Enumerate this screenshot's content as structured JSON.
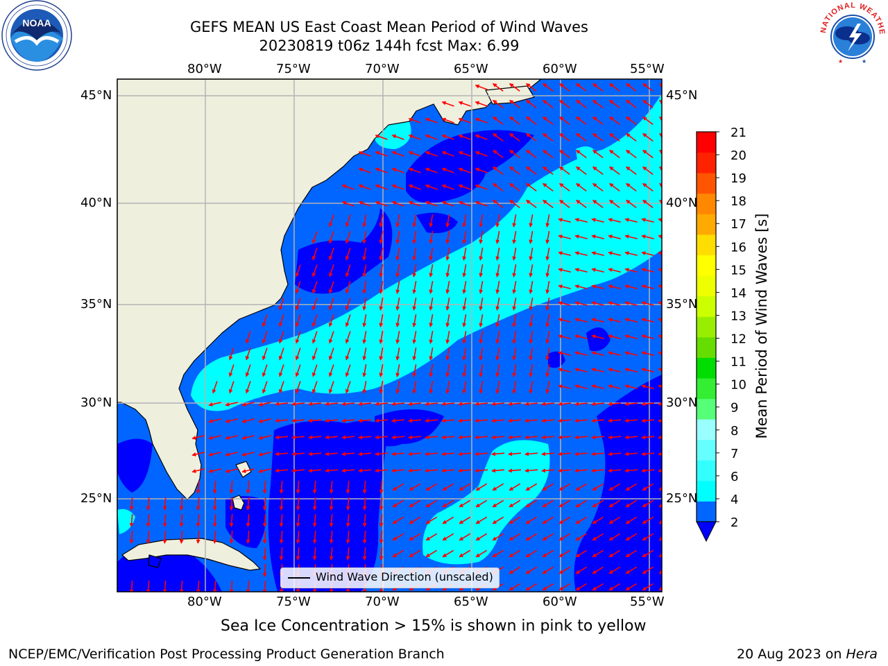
{
  "title": {
    "line1": "GEFS MEAN US East Coast Mean Period of Wind Waves",
    "line2": "20230819 t06z 144h fcst   Max: 6.99"
  },
  "map": {
    "lon_labels": [
      "80°W",
      "75°W",
      "70°W",
      "65°W",
      "60°W",
      "55°W"
    ],
    "lat_labels": [
      "45°N",
      "40°N",
      "35°N",
      "30°N",
      "25°N"
    ],
    "colors": {
      "land": "#efefde",
      "gridline": "#b4b4b4",
      "arrow": "#ff0000"
    },
    "legend": {
      "label": "Wind Wave Direction (unscaled)"
    }
  },
  "colorbar": {
    "label": "Mean Period of Wind Waves [s]",
    "ticks": [
      "2",
      "4",
      "6",
      "7",
      "8",
      "9",
      "10",
      "11",
      "12",
      "13",
      "14",
      "15",
      "16",
      "17",
      "18",
      "19",
      "20",
      "21"
    ],
    "colors": [
      "#0066ff",
      "#00ffff",
      "#33ffff",
      "#66ffff",
      "#99ffff",
      "#55ff77",
      "#33ee33",
      "#00dd00",
      "#66dd00",
      "#99ee00",
      "#ccff00",
      "#eeff00",
      "#ffff00",
      "#ffdd00",
      "#ffaa00",
      "#ff8800",
      "#ff5500",
      "#ff2200",
      "#ff0000"
    ],
    "extend_color": "#0000ff"
  },
  "notes": {
    "sea_ice": "Sea Ice Concentration > 15% is shown in pink to yellow",
    "footer_left": "NCEP/EMC/Verification Post Processing Product Generation Branch",
    "footer_date": "20 Aug 2023 on",
    "footer_host": "Hera"
  },
  "logos": {
    "noaa": "NOAA",
    "nws": "NATIONAL WEATHER SERVICE"
  }
}
